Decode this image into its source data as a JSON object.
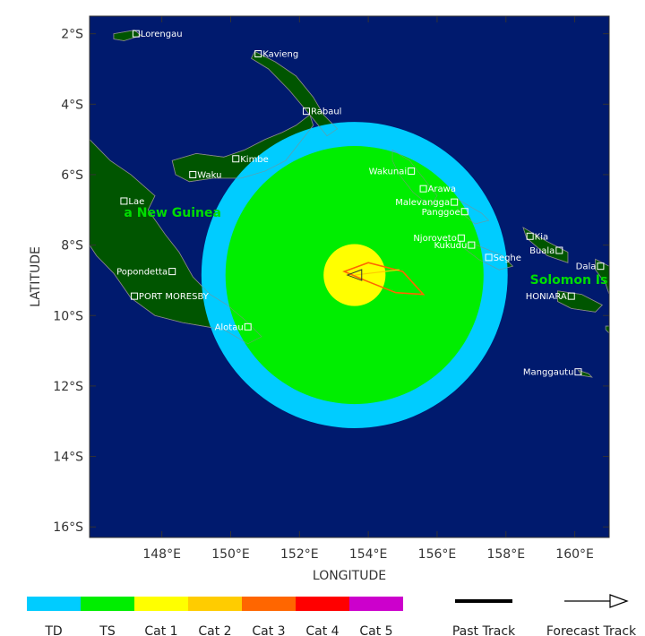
{
  "axes": {
    "xlabel": "LONGITUDE",
    "ylabel": "LATITUDE",
    "x_ticks": [
      {
        "value": 148,
        "label": "148°E"
      },
      {
        "value": 150,
        "label": "150°E"
      },
      {
        "value": 152,
        "label": "152°E"
      },
      {
        "value": 154,
        "label": "154°E"
      },
      {
        "value": 156,
        "label": "156°E"
      },
      {
        "value": 158,
        "label": "158°E"
      },
      {
        "value": 160,
        "label": "160°E"
      }
    ],
    "y_ticks": [
      {
        "value": -2,
        "label": "2°S"
      },
      {
        "value": -4,
        "label": "4°S"
      },
      {
        "value": -6,
        "label": "6°S"
      },
      {
        "value": -8,
        "label": "8°S"
      },
      {
        "value": -10,
        "label": "10°S"
      },
      {
        "value": -12,
        "label": "12°S"
      },
      {
        "value": -14,
        "label": "14°S"
      },
      {
        "value": -16,
        "label": "16°S"
      }
    ],
    "lon_range": [
      145.9,
      161.0
    ],
    "lat_range": [
      -16.3,
      -1.5
    ]
  },
  "colors": {
    "ocean": "#001a6e",
    "land": "#005500",
    "coast": "#8a8a8a",
    "td": "#00ccff",
    "ts": "#00ee00",
    "cat1": "#ffff00",
    "cat2": "#ffcc00",
    "cat3": "#ff6600",
    "cat4": "#ff0000",
    "cat5": "#cc00cc"
  },
  "map_data": {
    "storm_center": {
      "lon": 153.6,
      "lat": -8.85
    },
    "wind_radii_deg": {
      "td": 4.45,
      "ts": 3.75,
      "cat1": 0.9
    },
    "forecast_track": [
      [
        153.6,
        -8.85
      ],
      [
        154.9,
        -8.7
      ]
    ],
    "forecast_cone": [
      [
        153.3,
        -8.75
      ],
      [
        154.0,
        -8.5
      ],
      [
        155.0,
        -8.75
      ],
      [
        155.6,
        -9.4
      ],
      [
        154.8,
        -9.35
      ],
      [
        153.9,
        -9.0
      ]
    ]
  },
  "region_labels": [
    {
      "name": "a New Guinea",
      "lon": 146.9,
      "lat": -7.2
    },
    {
      "name": "Solomon Is",
      "lon": 158.7,
      "lat": -9.1
    }
  ],
  "cities": [
    {
      "name": "Lorengau",
      "lon": 147.25,
      "lat": -2.0
    },
    {
      "name": "Kavieng",
      "lon": 150.8,
      "lat": -2.57
    },
    {
      "name": "Rabaul",
      "lon": 152.2,
      "lat": -4.2
    },
    {
      "name": "Kimbe",
      "lon": 150.15,
      "lat": -5.55
    },
    {
      "name": "Waku",
      "lon": 148.9,
      "lat": -6.0
    },
    {
      "name": "Lae",
      "lon": 146.9,
      "lat": -6.75
    },
    {
      "name": "Popondetta",
      "lon": 148.3,
      "lat": -8.75
    },
    {
      "name": "PORT MORESBY",
      "lon": 147.2,
      "lat": -9.45
    },
    {
      "name": "Alotau",
      "lon": 150.5,
      "lat": -10.32
    },
    {
      "name": "Wakunai",
      "lon": 155.25,
      "lat": -5.9
    },
    {
      "name": "Arawa",
      "lon": 155.6,
      "lat": -6.4
    },
    {
      "name": "Malevangga",
      "lon": 156.5,
      "lat": -6.78
    },
    {
      "name": "Panggoe",
      "lon": 156.8,
      "lat": -7.05
    },
    {
      "name": "Njoroveto",
      "lon": 156.7,
      "lat": -7.8
    },
    {
      "name": "Kukudu",
      "lon": 157.0,
      "lat": -8.0
    },
    {
      "name": "Seghe",
      "lon": 157.5,
      "lat": -8.35
    },
    {
      "name": "Kia",
      "lon": 158.7,
      "lat": -7.75
    },
    {
      "name": "Buala",
      "lon": 159.55,
      "lat": -8.15
    },
    {
      "name": "Dala",
      "lon": 160.75,
      "lat": -8.6
    },
    {
      "name": "HONIARA",
      "lon": 159.9,
      "lat": -9.45
    },
    {
      "name": "Manggautu",
      "lon": 160.1,
      "lat": -11.6
    }
  ],
  "legend": {
    "categories": [
      {
        "label": "TD",
        "color": "#00ccff"
      },
      {
        "label": "TS",
        "color": "#00ee00"
      },
      {
        "label": "Cat 1",
        "color": "#ffff00"
      },
      {
        "label": "Cat 2",
        "color": "#ffcc00"
      },
      {
        "label": "Cat 3",
        "color": "#ff6600"
      },
      {
        "label": "Cat 4",
        "color": "#ff0000"
      },
      {
        "label": "Cat 5",
        "color": "#cc00cc"
      }
    ],
    "past_track_label": "Past Track",
    "forecast_track_label": "Forecast Track"
  }
}
